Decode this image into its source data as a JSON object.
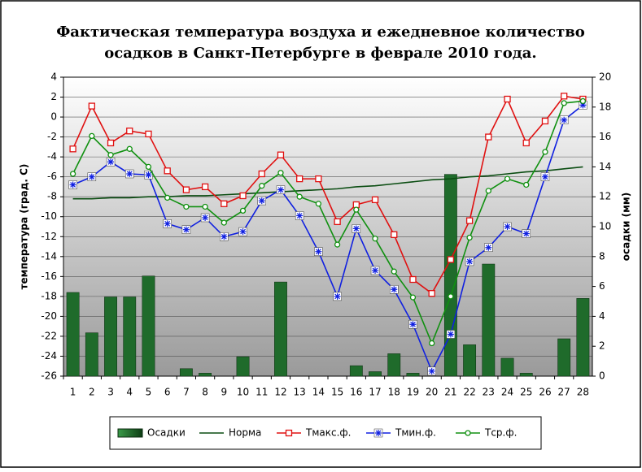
{
  "chart_data": {
    "type": "combo",
    "title": [
      "Фактическая температура воздуха и ежедневное количество",
      "осадков в Санкт-Петербурге в феврале 2010 года."
    ],
    "y_label": "температура (град. С)",
    "y2_label": "осадки (мм)",
    "categories": [
      1,
      2,
      3,
      4,
      5,
      6,
      7,
      8,
      9,
      10,
      11,
      12,
      13,
      14,
      15,
      16,
      17,
      18,
      19,
      20,
      21,
      22,
      23,
      24,
      25,
      26,
      27,
      28
    ],
    "ylim": [
      -26,
      4
    ],
    "yticks": [
      -26,
      -24,
      -22,
      -20,
      -18,
      -16,
      -14,
      -12,
      -10,
      -8,
      -6,
      -4,
      -2,
      0,
      2,
      4
    ],
    "y2lim": [
      0,
      20
    ],
    "y2ticks": [
      0,
      2,
      4,
      6,
      8,
      10,
      12,
      14,
      16,
      18,
      20
    ],
    "grid": true,
    "legend": "bottom",
    "series": [
      {
        "name": "Осадки",
        "type": "bar",
        "axis": "y2",
        "color": "#1f6b2b",
        "values": [
          5.6,
          2.9,
          5.3,
          5.3,
          6.7,
          0,
          0.5,
          0.2,
          0,
          1.3,
          0,
          6.3,
          0,
          0,
          0,
          0.7,
          0.3,
          1.5,
          0.2,
          0,
          13.5,
          2.1,
          7.5,
          1.2,
          0.2,
          0,
          2.5,
          5.2
        ]
      },
      {
        "name": "Норма",
        "type": "line",
        "marker": "none",
        "color": "#0b4d12",
        "values": [
          -8.2,
          -8.2,
          -8.1,
          -8.1,
          -8.0,
          -8.0,
          -7.9,
          -7.9,
          -7.8,
          -7.7,
          -7.6,
          -7.5,
          -7.4,
          -7.3,
          -7.2,
          -7.0,
          -6.9,
          -6.7,
          -6.5,
          -6.3,
          -6.2,
          -6.0,
          -5.9,
          -5.7,
          -5.5,
          -5.4,
          -5.2,
          -5.0
        ]
      },
      {
        "name": "Тмакс.ф.",
        "type": "line",
        "marker": "square",
        "color": "#e01010",
        "values": [
          -3.2,
          1.1,
          -2.6,
          -1.4,
          -1.7,
          -5.4,
          -7.3,
          -7.0,
          -8.7,
          -7.9,
          -5.7,
          -3.8,
          -6.2,
          -6.2,
          -10.5,
          -8.8,
          -8.3,
          -11.8,
          -16.3,
          -17.7,
          -14.3,
          -10.4,
          -2.0,
          1.8,
          -2.6,
          -0.4,
          2.1,
          1.8
        ]
      },
      {
        "name": "Тмин.ф.",
        "type": "line",
        "marker": "star",
        "color": "#1020e0",
        "values": [
          -6.8,
          -6.0,
          -4.5,
          -5.7,
          -5.8,
          -10.7,
          -11.3,
          -10.1,
          -12.0,
          -11.5,
          -8.4,
          -7.3,
          -9.9,
          -13.5,
          -18.0,
          -11.2,
          -15.4,
          -17.3,
          -20.8,
          -25.5,
          -21.8,
          -14.5,
          -13.1,
          -11.0,
          -11.7,
          -6.0,
          -0.3,
          1.2
        ]
      },
      {
        "name": "Тср.ф.",
        "type": "line",
        "marker": "circle",
        "color": "#109010",
        "values": [
          -5.7,
          -1.9,
          -3.8,
          -3.2,
          -5.0,
          -8.1,
          -9.0,
          -9.0,
          -10.6,
          -9.4,
          -6.9,
          -5.6,
          -8.0,
          -8.7,
          -12.8,
          -9.3,
          -12.2,
          -15.5,
          -18.1,
          -22.7,
          -18.0,
          -12.1,
          -7.4,
          -6.2,
          -6.8,
          -3.5,
          1.4,
          1.6
        ]
      }
    ]
  }
}
